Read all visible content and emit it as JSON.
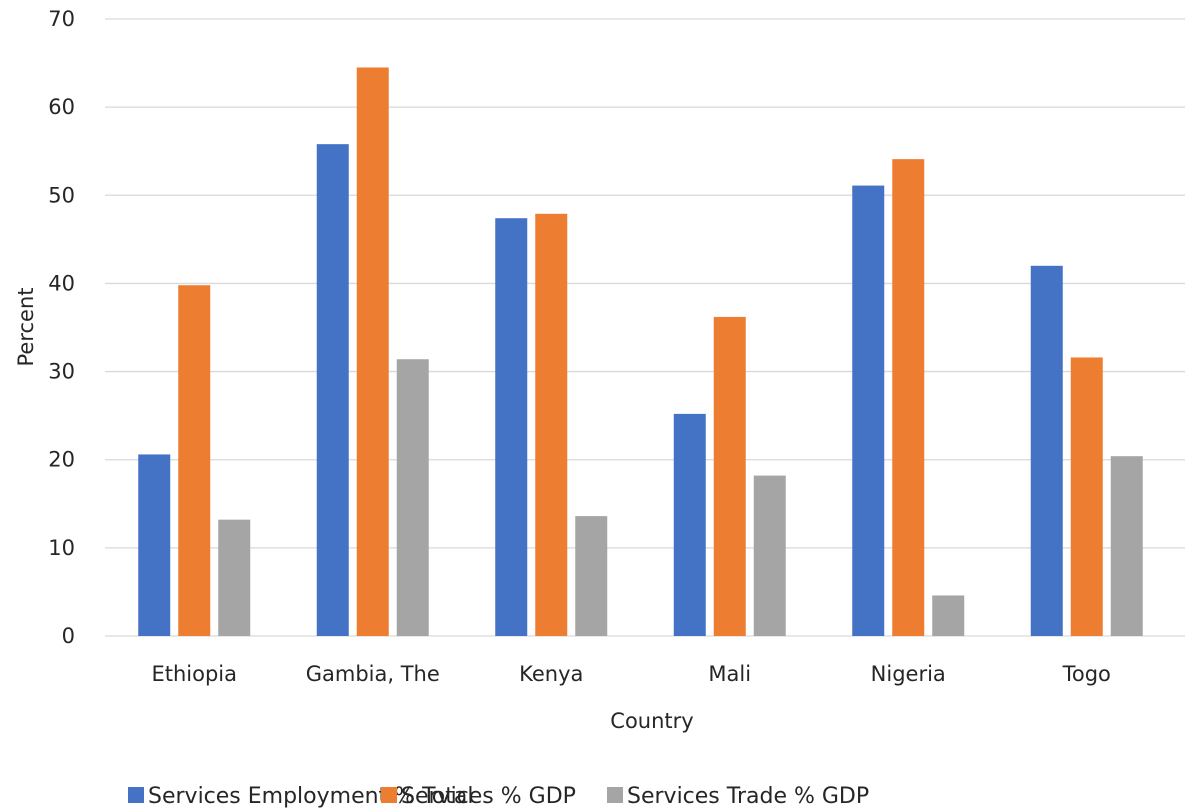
{
  "chart_data": {
    "type": "bar",
    "title": "",
    "xlabel": "Country",
    "ylabel": "Percent",
    "ylim": [
      0,
      70
    ],
    "yticks": [
      0,
      10,
      20,
      30,
      40,
      50,
      60,
      70
    ],
    "grid": true,
    "legend_position": "bottom",
    "categories": [
      "Ethiopia",
      "Gambia, The",
      "Kenya",
      "Mali",
      "Nigeria",
      "Togo"
    ],
    "series": [
      {
        "name": "Services Employment % Total",
        "color": "#4472C4",
        "values": [
          20.6,
          55.8,
          47.4,
          25.2,
          51.1,
          42.0
        ]
      },
      {
        "name": "Services % GDP",
        "color": "#ED7D31",
        "values": [
          39.8,
          64.5,
          47.9,
          36.2,
          54.1,
          31.6
        ]
      },
      {
        "name": "Services Trade % GDP",
        "color": "#A5A5A5",
        "values": [
          13.2,
          31.4,
          13.6,
          18.2,
          4.6,
          20.4
        ]
      }
    ]
  }
}
